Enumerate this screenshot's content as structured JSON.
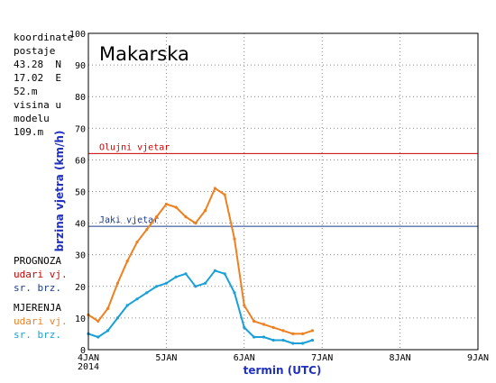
{
  "station_info": {
    "lines": [
      "koordinate",
      "postaje",
      "43.28  N",
      "17.02  E",
      "52.m",
      "visina u",
      "modelu",
      "109.m"
    ]
  },
  "legend": {
    "prognoza_title": "PROGNOZA",
    "prognoza_gust": "udari vj.",
    "prognoza_mean": "sr. brz.",
    "mjerenja_title": "MJERENJA",
    "mjerenja_gust": "udari vj.",
    "mjerenja_mean": "sr. brz."
  },
  "colors": {
    "forecast_gust": "#cc0000",
    "forecast_mean": "#1a3c8c",
    "measured_gust": "#ee8020",
    "measured_mean": "#1aa0d8",
    "storm_line": "#cc0000",
    "strong_line": "#1a3c8c",
    "axis_label": "#2030c0"
  },
  "chart_data": {
    "type": "line",
    "title": "Makarska",
    "xlabel": "termin (UTC)",
    "ylabel": "brzina vjetra (km/h)",
    "ylim": [
      0,
      100
    ],
    "yticks": [
      0,
      10,
      20,
      30,
      40,
      50,
      60,
      70,
      80,
      90,
      100
    ],
    "xlim": [
      "2014-01-04",
      "2014-01-09"
    ],
    "xticks": [
      {
        "date": "2014-01-04",
        "label": "4JAN",
        "sublabel": "2014"
      },
      {
        "date": "2014-01-05",
        "label": "5JAN"
      },
      {
        "date": "2014-01-06",
        "label": "6JAN"
      },
      {
        "date": "2014-01-07",
        "label": "7JAN"
      },
      {
        "date": "2014-01-08",
        "label": "8JAN"
      },
      {
        "date": "2014-01-09",
        "label": "9JAN"
      }
    ],
    "grid": true,
    "reference_lines": [
      {
        "label": "Olujni vjetar",
        "value": 62
      },
      {
        "label": "Jaki vjetar",
        "value": 39
      }
    ],
    "series": [
      {
        "name": "udari vj.",
        "group": "MJERENJA",
        "x": [
          "2014-01-04 00:00",
          "2014-01-04 03:00",
          "2014-01-04 06:00",
          "2014-01-04 09:00",
          "2014-01-04 12:00",
          "2014-01-04 15:00",
          "2014-01-04 18:00",
          "2014-01-04 21:00",
          "2014-01-05 00:00",
          "2014-01-05 03:00",
          "2014-01-05 06:00",
          "2014-01-05 09:00",
          "2014-01-05 12:00",
          "2014-01-05 15:00",
          "2014-01-05 18:00",
          "2014-01-05 21:00",
          "2014-01-06 00:00",
          "2014-01-06 03:00",
          "2014-01-06 06:00",
          "2014-01-06 09:00",
          "2014-01-06 12:00",
          "2014-01-06 15:00",
          "2014-01-06 18:00",
          "2014-01-06 21:00"
        ],
        "values": [
          11,
          9,
          13,
          21,
          28,
          34,
          38,
          42,
          46,
          45,
          42,
          40,
          44,
          51,
          49,
          35,
          14,
          9,
          8,
          7,
          6,
          5,
          5,
          6
        ]
      },
      {
        "name": "sr. brz.",
        "group": "MJERENJA",
        "x": [
          "2014-01-04 00:00",
          "2014-01-04 03:00",
          "2014-01-04 06:00",
          "2014-01-04 09:00",
          "2014-01-04 12:00",
          "2014-01-04 15:00",
          "2014-01-04 18:00",
          "2014-01-04 21:00",
          "2014-01-05 00:00",
          "2014-01-05 03:00",
          "2014-01-05 06:00",
          "2014-01-05 09:00",
          "2014-01-05 12:00",
          "2014-01-05 15:00",
          "2014-01-05 18:00",
          "2014-01-05 21:00",
          "2014-01-06 00:00",
          "2014-01-06 03:00",
          "2014-01-06 06:00",
          "2014-01-06 09:00",
          "2014-01-06 12:00",
          "2014-01-06 15:00",
          "2014-01-06 18:00",
          "2014-01-06 21:00"
        ],
        "values": [
          5,
          4,
          6,
          10,
          14,
          16,
          18,
          20,
          21,
          23,
          24,
          20,
          21,
          25,
          24,
          18,
          7,
          4,
          4,
          3,
          3,
          2,
          2,
          3
        ]
      }
    ]
  }
}
